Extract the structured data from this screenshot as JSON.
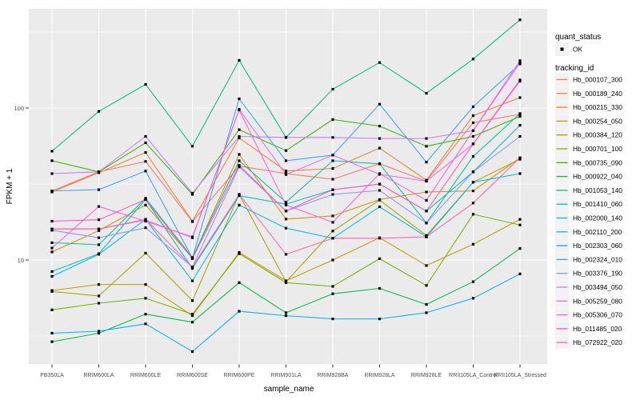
{
  "figure": {
    "background": "#FFFFFF",
    "panel_background": "#EBEBEB",
    "gridline_color": "#FFFFFF",
    "point_color": "#000000",
    "tick_label_color": "#4D4D4D",
    "text_color": "#000000",
    "legend_key_fill": "#F2F2F2"
  },
  "legend": {
    "quant_status": {
      "title": "quant_status",
      "items": [
        {
          "label": "OK",
          "marker": "filled-square"
        }
      ]
    },
    "tracking_id": {
      "title": "tracking_id"
    }
  },
  "chart_data": {
    "type": "line",
    "title": "",
    "xlabel": "sample_name",
    "ylabel": "FPKM + 1",
    "y_scale": "log10",
    "y_ticks": [
      10,
      100
    ],
    "y_minor_gridlines": [
      3.1623,
      31.623,
      316.23
    ],
    "ylim_approx": [
      2.1,
      455
    ],
    "grid": "on",
    "legend_position": "right",
    "marker": "filled-square",
    "x_categories": [
      "PB350LA",
      "RRIM600LA",
      "RRIM600LE",
      "RRIM600SE",
      "RRIM600PE",
      "RRIM901LA",
      "RRIM928BA",
      "RRIM928LA",
      "RRIM928LE",
      "RRII105LA_Control",
      "RRII105LA_Stressed"
    ],
    "series": [
      {
        "tracking_id": "Hb_000107_300",
        "quant_status": "OK",
        "color": "#F8766D",
        "values": [
          28.5,
          38,
          44.5,
          17.9,
          41.5,
          37,
          34,
          43,
          33,
          80,
          91
        ]
      },
      {
        "tracking_id": "Hb_000189_240",
        "quant_status": "OK",
        "color": "#EA8331",
        "values": [
          28,
          37.5,
          51,
          18,
          63.5,
          38.5,
          40,
          54.5,
          33.5,
          89,
          117
        ]
      },
      {
        "tracking_id": "Hb_000215_330",
        "quant_status": "OK",
        "color": "#D89000",
        "values": [
          11.3,
          15.6,
          23,
          10.3,
          49.5,
          18.6,
          19.5,
          25,
          28,
          28.5,
          47
        ]
      },
      {
        "tracking_id": "Hb_000254_050",
        "quant_status": "OK",
        "color": "#C09B00",
        "values": [
          6.3,
          6.9,
          6.9,
          4.3,
          11.2,
          7.3,
          10,
          14,
          9.2,
          12.7,
          18.5
        ]
      },
      {
        "tracking_id": "Hb_000384_120",
        "quant_status": "OK",
        "color": "#A3A500",
        "values": [
          6.2,
          5.8,
          11.1,
          5.4,
          27,
          7.2,
          15.5,
          24.8,
          14.5,
          32.5,
          46
        ]
      },
      {
        "tracking_id": "Hb_000701_100",
        "quant_status": "OK",
        "color": "#7CAE00",
        "values": [
          4.7,
          5.2,
          5.6,
          4.4,
          11,
          7.1,
          6.7,
          10.2,
          6.8,
          20,
          17
        ]
      },
      {
        "tracking_id": "Hb_000735_090",
        "quant_status": "OK",
        "color": "#39B600",
        "values": [
          45,
          38,
          59,
          27,
          72,
          52.5,
          84,
          76,
          56,
          65,
          88
        ]
      },
      {
        "tracking_id": "Hb_000922_040",
        "quant_status": "OK",
        "color": "#00BB4E",
        "values": [
          2.9,
          3.3,
          4.4,
          3.9,
          7.1,
          4.5,
          6,
          6.5,
          5.1,
          7.2,
          11.9
        ]
      },
      {
        "tracking_id": "Hb_001053_140",
        "quant_status": "OK",
        "color": "#00BF7D",
        "values": [
          52,
          95,
          143,
          56,
          206,
          64,
          133,
          199,
          125,
          210,
          380
        ]
      },
      {
        "tracking_id": "Hb_001410_060",
        "quant_status": "OK",
        "color": "#00C1A3",
        "values": [
          13,
          12.6,
          25.5,
          10.4,
          45,
          24,
          45,
          42.9,
          17.5,
          48,
          92
        ]
      },
      {
        "tracking_id": "Hb_002000_140",
        "quant_status": "OK",
        "color": "#00BFC4",
        "values": [
          8.4,
          11,
          25,
          8.8,
          26.5,
          23.3,
          29,
          31.6,
          21,
          38,
          77
        ]
      },
      {
        "tracking_id": "Hb_002110_200",
        "quant_status": "OK",
        "color": "#00BAE0",
        "values": [
          7.8,
          10.9,
          18.5,
          7.3,
          23,
          16.2,
          13.9,
          22.4,
          14.2,
          32.5,
          37
        ]
      },
      {
        "tracking_id": "Hb_002303_060",
        "quant_status": "OK",
        "color": "#00B0F6",
        "values": [
          3.3,
          3.4,
          3.8,
          2.5,
          4.6,
          4.3,
          4.1,
          4.1,
          4.5,
          5.6,
          8.1
        ]
      },
      {
        "tracking_id": "Hb_002324_010",
        "quant_status": "OK",
        "color": "#35A2FF",
        "values": [
          28.5,
          29,
          38.5,
          10.3,
          115,
          45,
          49,
          106,
          44,
          102,
          195
        ]
      },
      {
        "tracking_id": "Hb_003376_190",
        "quant_status": "OK",
        "color": "#9590FF",
        "values": [
          15.7,
          14,
          16.3,
          9,
          41,
          21,
          27,
          28.7,
          17.5,
          38,
          65
        ]
      },
      {
        "tracking_id": "Hb_003494_050",
        "quant_status": "OK",
        "color": "#C77CFF",
        "values": [
          37,
          38,
          65,
          27.5,
          65,
          64,
          64,
          63,
          63,
          71,
          205
        ]
      },
      {
        "tracking_id": "Hb_005259_080",
        "quant_status": "OK",
        "color": "#E76BF3",
        "values": [
          16,
          16,
          18.3,
          14,
          98,
          36.5,
          49,
          36.6,
          33,
          58,
          150
        ]
      },
      {
        "tracking_id": "Hb_005306_070",
        "quant_status": "OK",
        "color": "#FA62DB",
        "values": [
          12,
          22.5,
          18,
          14.2,
          97,
          23,
          17.7,
          37,
          24.7,
          71,
          198
        ]
      },
      {
        "tracking_id": "Hb_011485_020",
        "quant_status": "OK",
        "color": "#FF57BB",
        "values": [
          18,
          18.4,
          25,
          10.2,
          42,
          21,
          29,
          31.6,
          21,
          58,
          153
        ]
      },
      {
        "tracking_id": "Hb_072922_020",
        "quant_status": "OK",
        "color": "#FF65AC",
        "values": [
          16,
          16,
          18.5,
          9,
          27,
          10.9,
          13.9,
          13.9,
          14.2,
          23.7,
          47
        ]
      }
    ]
  }
}
